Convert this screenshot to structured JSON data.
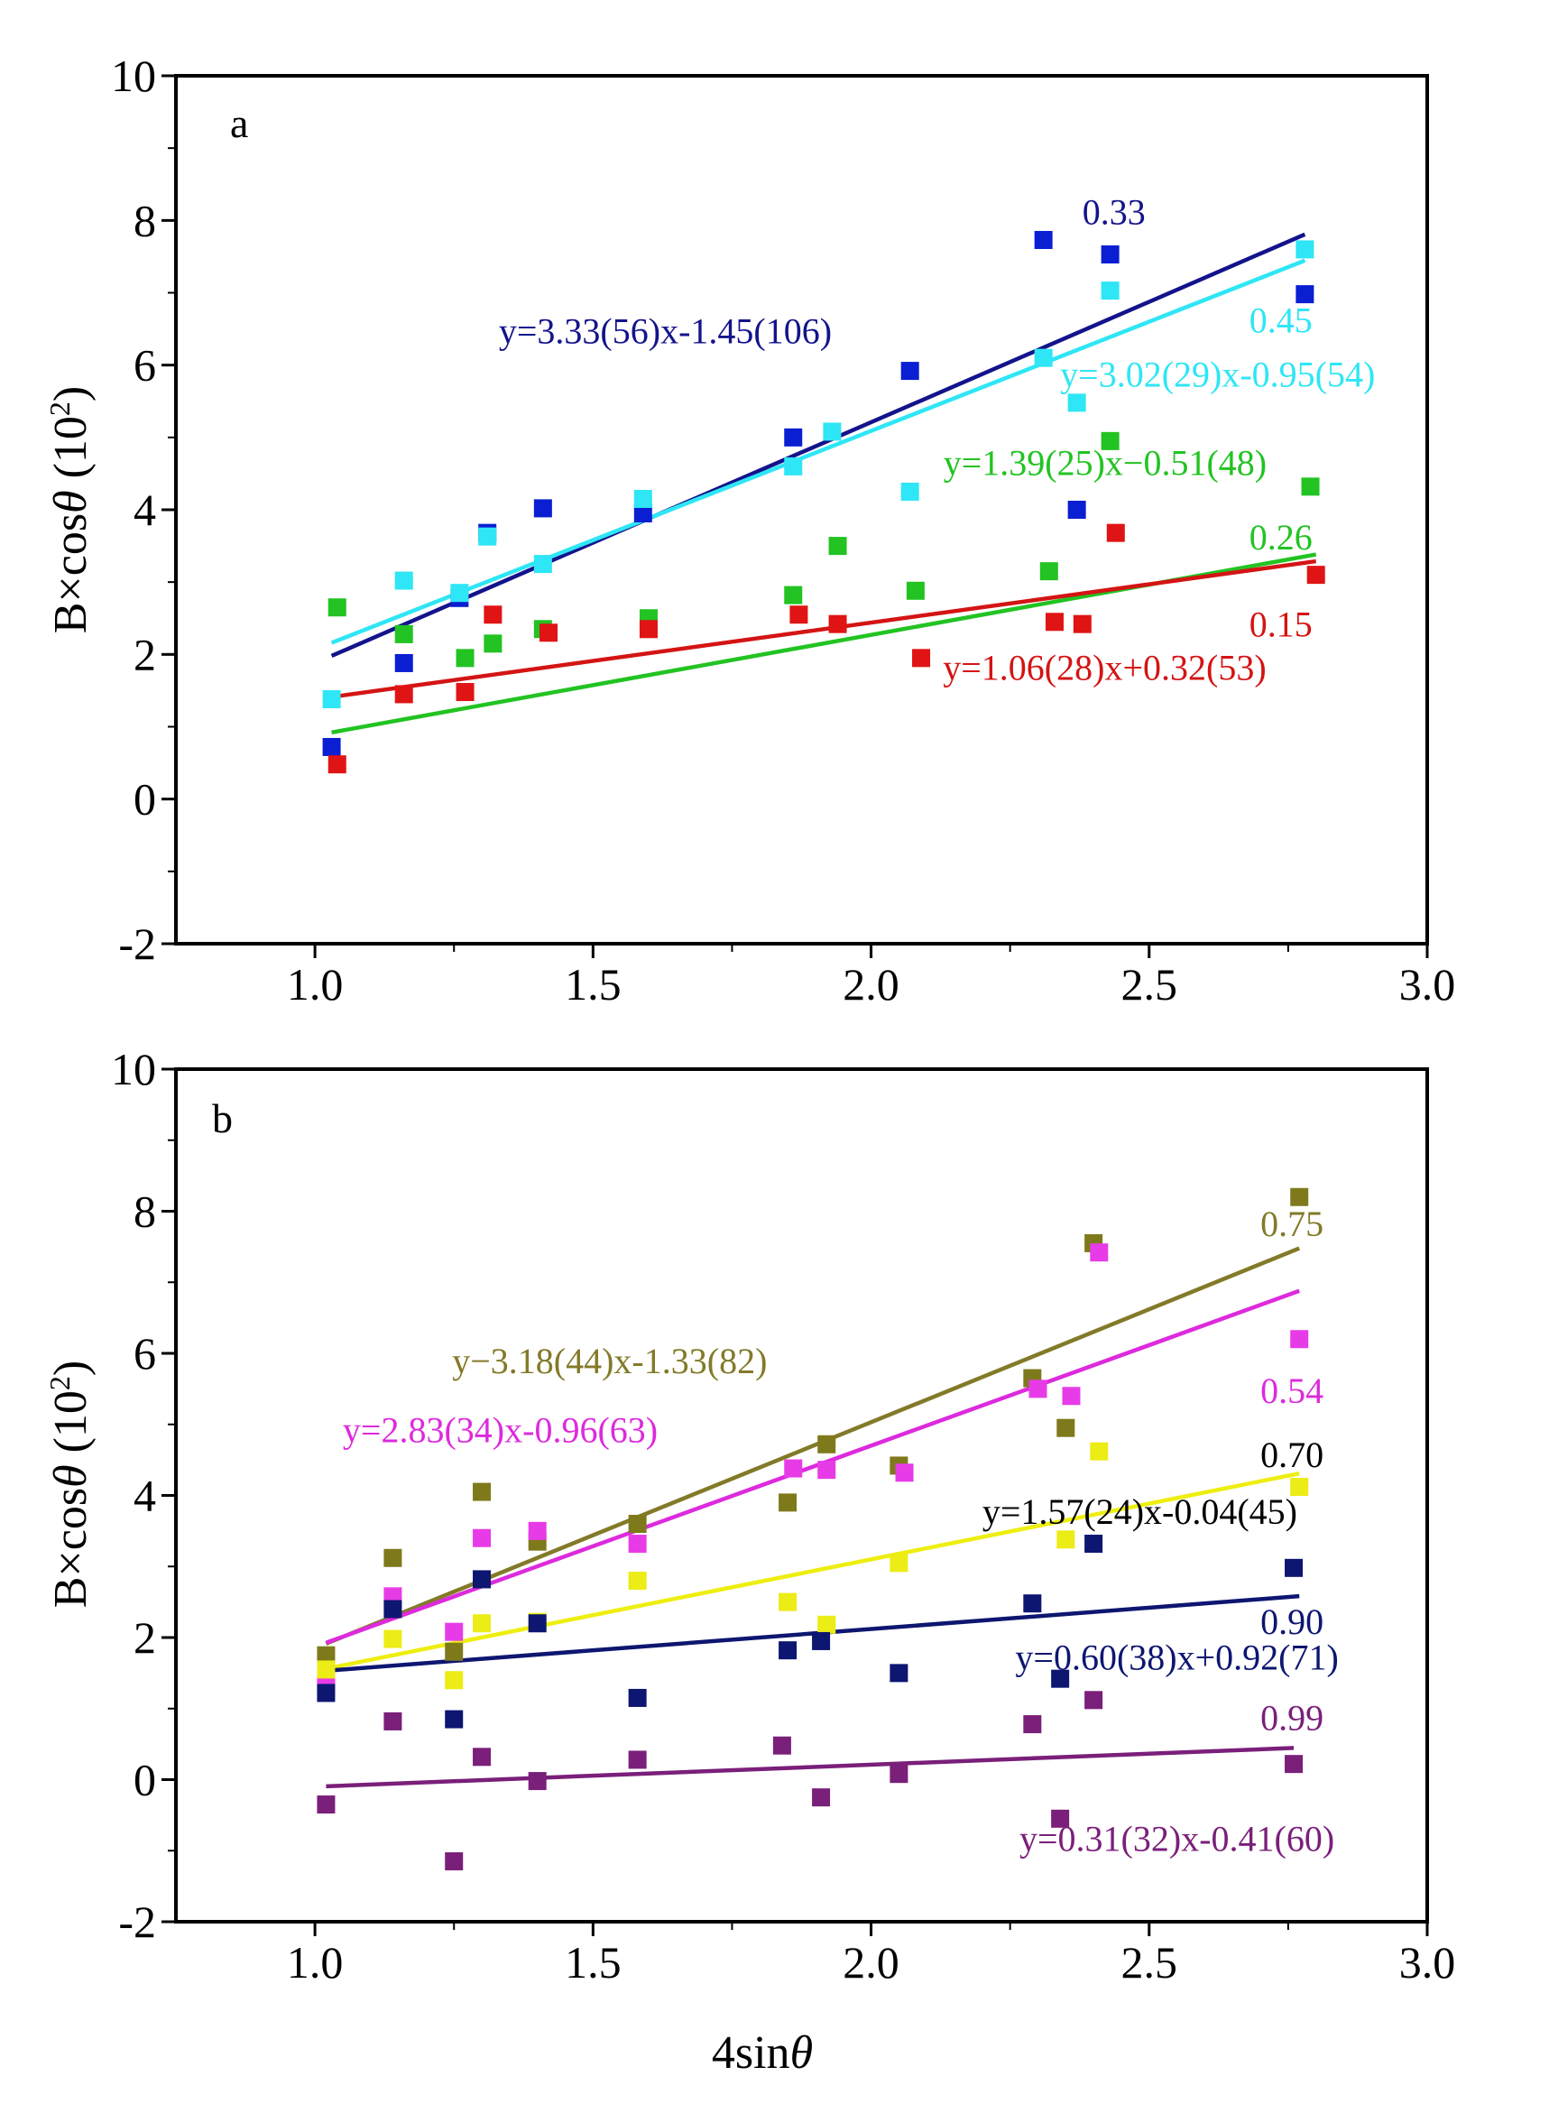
{
  "chart_data": [
    {
      "type": "scatter",
      "panel_label": "a",
      "xlabel": "",
      "ylabel_main": "B×cos",
      "ylabel_theta": "θ",
      "ylabel_unit_open": " (10",
      "ylabel_exp": "2",
      "ylabel_unit_close": ")",
      "xlim": [
        0.75,
        3.0
      ],
      "ylim": [
        -2,
        10
      ],
      "xticks": [
        1.0,
        1.5,
        2.0,
        2.5,
        3.0
      ],
      "xtick_labels": [
        "1.0",
        "1.5",
        "2.0",
        "2.5",
        "3.0"
      ],
      "yticks": [
        -2,
        0,
        2,
        4,
        6,
        8,
        10
      ],
      "ytick_labels": [
        "-2",
        "0",
        "2",
        "4",
        "6",
        "8",
        "10"
      ],
      "series": [
        {
          "name": "0.33",
          "color": "#0a1ed2",
          "line_color": "#13138c",
          "slope": 3.33,
          "intercept": -1.45,
          "fit_x": [
            1.03,
            2.78
          ],
          "equation": "y=3.33(56)x-1.45(106)",
          "label_anchor": [
            2.38,
            7.95
          ],
          "label_align": "start",
          "eq_anchor": [
            1.63,
            6.3
          ],
          "eq_align": "middle",
          "x": [
            1.03,
            1.16,
            1.26,
            1.31,
            1.41,
            1.59,
            1.86,
            2.07,
            2.31,
            2.43,
            2.37,
            2.78
          ],
          "y": [
            0.72,
            1.88,
            2.78,
            3.68,
            4.02,
            3.95,
            5.0,
            5.92,
            7.73,
            7.53,
            4.0,
            6.98
          ]
        },
        {
          "name": "0.45",
          "color": "#2ee6f5",
          "line_color": "#2ee6f5",
          "slope": 3.02,
          "intercept": -0.95,
          "fit_x": [
            1.03,
            2.78
          ],
          "equation": "y=3.02(29)x-0.95(54)",
          "label_anchor": [
            2.68,
            6.45
          ],
          "label_align": "start",
          "eq_anchor": [
            2.34,
            5.7
          ],
          "eq_align": "start",
          "x": [
            1.03,
            1.16,
            1.26,
            1.31,
            1.41,
            1.59,
            1.86,
            1.93,
            2.07,
            2.31,
            2.37,
            2.43,
            2.78
          ],
          "y": [
            1.38,
            3.02,
            2.85,
            3.63,
            3.25,
            4.15,
            4.6,
            5.08,
            4.25,
            6.1,
            5.48,
            7.03,
            7.6
          ]
        },
        {
          "name": "0.26",
          "color": "#22c322",
          "line_color": "#22c322",
          "slope": 1.39,
          "intercept": -0.51,
          "fit_x": [
            1.03,
            2.8
          ],
          "equation": "y=1.39(25)x−0.51(48)",
          "label_anchor": [
            2.68,
            3.45
          ],
          "label_align": "start",
          "eq_anchor": [
            2.13,
            4.48
          ],
          "eq_align": "start",
          "x": [
            1.04,
            1.16,
            1.27,
            1.32,
            1.41,
            1.6,
            1.86,
            1.94,
            2.08,
            2.32,
            2.43,
            2.79
          ],
          "y": [
            2.65,
            2.28,
            1.95,
            2.15,
            2.35,
            2.5,
            2.82,
            3.5,
            2.88,
            3.15,
            4.95,
            4.32
          ]
        },
        {
          "name": "0.15",
          "color": "#e01414",
          "line_color": "#d41414",
          "slope": 1.06,
          "intercept": 0.32,
          "fit_x": [
            1.03,
            2.8
          ],
          "equation": "y=1.06(28)x+0.32(53)",
          "label_anchor": [
            2.68,
            2.25
          ],
          "label_align": "start",
          "eq_anchor": [
            2.42,
            1.65
          ],
          "eq_align": "middle",
          "x": [
            1.04,
            1.16,
            1.27,
            1.32,
            1.42,
            1.6,
            1.87,
            1.94,
            2.09,
            2.33,
            2.38,
            2.44,
            2.8
          ],
          "y": [
            0.48,
            1.45,
            1.48,
            2.55,
            2.3,
            2.35,
            2.55,
            2.42,
            1.95,
            2.45,
            2.42,
            3.68,
            3.1
          ]
        }
      ]
    },
    {
      "type": "scatter",
      "panel_label": "b",
      "xlabel_main": "4sin",
      "xlabel_theta": "θ",
      "ylabel_main": "B×cos",
      "ylabel_theta": "θ",
      "ylabel_unit_open": " (10",
      "ylabel_exp": "2",
      "ylabel_unit_close": ")",
      "xlim": [
        0.75,
        3.0
      ],
      "ylim": [
        -2,
        10
      ],
      "xticks": [
        1.0,
        1.5,
        2.0,
        2.5,
        3.0
      ],
      "xtick_labels": [
        "1.0",
        "1.5",
        "2.0",
        "2.5",
        "3.0"
      ],
      "yticks": [
        -2,
        0,
        2,
        4,
        6,
        8,
        10
      ],
      "ytick_labels": [
        "-2",
        "0",
        "2",
        "4",
        "6",
        "8",
        "10"
      ],
      "series": [
        {
          "name": "0.75",
          "color": "#7e7a1c",
          "line_color": "#827a28",
          "slope": 3.18,
          "intercept": -1.33,
          "fit_x": [
            1.02,
            2.77
          ],
          "equation": "y−3.18(44)x-1.33(82)",
          "label_anchor": [
            2.7,
            7.65
          ],
          "label_align": "start",
          "eq_anchor": [
            1.53,
            5.72
          ],
          "eq_align": "middle",
          "x": [
            1.02,
            1.14,
            1.25,
            1.3,
            1.4,
            1.58,
            1.85,
            1.92,
            2.05,
            2.29,
            2.35,
            2.4,
            2.77
          ],
          "y": [
            1.75,
            3.12,
            1.8,
            4.05,
            3.35,
            3.6,
            3.9,
            4.72,
            4.42,
            5.65,
            4.95,
            7.55,
            8.2
          ]
        },
        {
          "name": "0.54",
          "color": "#e83be8",
          "line_color": "#dd2add",
          "slope": 2.83,
          "intercept": -0.96,
          "fit_x": [
            1.02,
            2.77
          ],
          "equation": "y=2.83(34)x-0.96(63)",
          "label_anchor": [
            2.7,
            5.3
          ],
          "label_align": "start",
          "eq_anchor": [
            1.05,
            4.75
          ],
          "eq_align": "start",
          "x": [
            1.02,
            1.14,
            1.25,
            1.3,
            1.4,
            1.58,
            1.86,
            1.92,
            2.06,
            2.3,
            2.36,
            2.41,
            2.77
          ],
          "y": [
            1.35,
            2.58,
            2.08,
            3.4,
            3.5,
            3.32,
            4.38,
            4.36,
            4.32,
            5.5,
            5.4,
            7.42,
            6.2
          ]
        },
        {
          "name": "0.70",
          "color": "#ecec16",
          "line_color": "#eeee10",
          "label_color": "#000000",
          "slope": 1.57,
          "intercept": -0.04,
          "fit_x": [
            1.02,
            2.77
          ],
          "equation": "y=1.57(24)x-0.04(45)",
          "eq_color": "#000000",
          "label_anchor": [
            2.7,
            4.4
          ],
          "label_align": "start",
          "eq_anchor": [
            2.2,
            3.6
          ],
          "eq_align": "start",
          "x": [
            1.02,
            1.14,
            1.25,
            1.3,
            1.4,
            1.58,
            1.85,
            1.92,
            2.05,
            2.35,
            2.41,
            2.77
          ],
          "y": [
            1.55,
            1.98,
            1.4,
            2.2,
            2.22,
            2.8,
            2.5,
            2.18,
            3.05,
            3.38,
            4.62,
            4.12
          ]
        },
        {
          "name": "0.90",
          "color": "#0d1670",
          "line_color": "#0d1670",
          "slope": 0.6,
          "intercept": 0.92,
          "fit_x": [
            1.02,
            2.77
          ],
          "equation": "y=0.60(38)x+0.92(71)",
          "label_anchor": [
            2.7,
            2.05
          ],
          "label_align": "start",
          "eq_anchor": [
            2.55,
            1.55
          ],
          "eq_align": "middle",
          "x": [
            1.02,
            1.14,
            1.25,
            1.3,
            1.4,
            1.58,
            1.85,
            1.91,
            2.05,
            2.29,
            2.34,
            2.4,
            2.76
          ],
          "y": [
            1.22,
            2.4,
            0.85,
            2.82,
            2.2,
            1.15,
            1.82,
            1.95,
            1.5,
            2.48,
            1.42,
            3.32,
            2.98
          ]
        },
        {
          "name": "0.99",
          "color": "#7a1f7a",
          "line_color": "#7a1f7a",
          "slope": 0.31,
          "intercept": -0.41,
          "fit_x": [
            1.02,
            2.76
          ],
          "equation": "y=0.31(32)x-0.41(60)",
          "label_anchor": [
            2.7,
            0.7
          ],
          "label_align": "start",
          "eq_anchor": [
            2.55,
            -1.0
          ],
          "eq_align": "middle",
          "x": [
            1.02,
            1.14,
            1.25,
            1.3,
            1.4,
            1.58,
            1.84,
            1.91,
            2.05,
            2.29,
            2.34,
            2.4,
            2.76
          ],
          "y": [
            -0.35,
            0.82,
            -1.15,
            0.32,
            -0.02,
            0.28,
            0.48,
            -0.25,
            0.08,
            0.78,
            -0.55,
            1.12,
            0.22
          ]
        }
      ]
    }
  ]
}
